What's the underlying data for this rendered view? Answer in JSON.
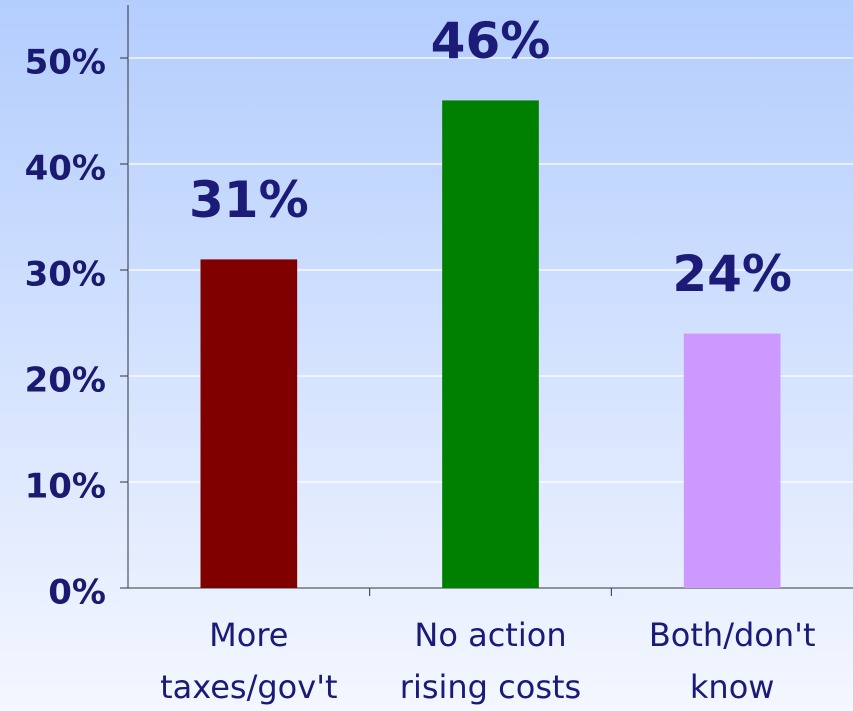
{
  "chart_data": {
    "type": "bar",
    "categories": [
      [
        "More",
        "taxes/gov't"
      ],
      [
        "No action",
        "rising costs"
      ],
      [
        "Both/don't",
        "know"
      ]
    ],
    "values": [
      31,
      46,
      24
    ],
    "value_labels": [
      "31%",
      "46%",
      "24%"
    ],
    "colors": [
      "#800000",
      "#008000",
      "#cc99ff"
    ],
    "ylim": [
      0,
      55
    ],
    "yticks": [
      {
        "value": 0,
        "label": "0%"
      },
      {
        "value": 10,
        "label": "10%"
      },
      {
        "value": 20,
        "label": "20%"
      },
      {
        "value": 30,
        "label": "30%"
      },
      {
        "value": 40,
        "label": "40%"
      },
      {
        "value": 50,
        "label": "50%"
      }
    ],
    "grid": true
  }
}
